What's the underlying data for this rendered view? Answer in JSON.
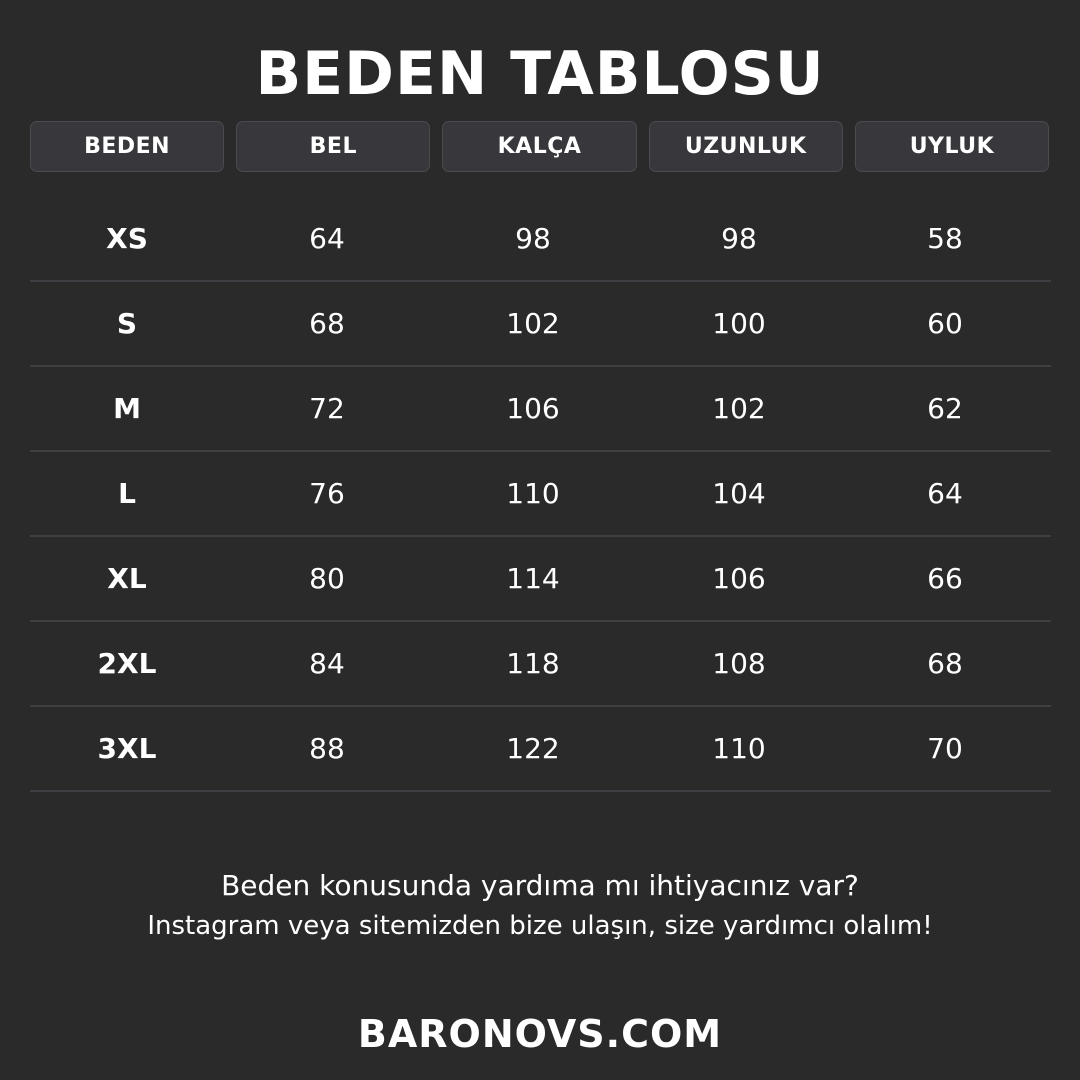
{
  "title": "BEDEN TABLOSU",
  "headers": [
    "BEDEN",
    "BEL",
    "KALÇA",
    "UZUNLUK",
    "UYLUK"
  ],
  "rows": [
    [
      "XS",
      "64",
      "98",
      "98",
      "58"
    ],
    [
      "S",
      "68",
      "102",
      "100",
      "60"
    ],
    [
      "M",
      "72",
      "106",
      "102",
      "62"
    ],
    [
      "L",
      "76",
      "110",
      "104",
      "64"
    ],
    [
      "XL",
      "80",
      "114",
      "106",
      "66"
    ],
    [
      "2XL",
      "84",
      "118",
      "108",
      "68"
    ],
    [
      "3XL",
      "88",
      "122",
      "110",
      "70"
    ]
  ],
  "help": {
    "line1": "Beden konusunda yardıma mı ihtiyacınız var?",
    "line2": "Instagram veya sitemizden bize ulaşın, size yardımcı olalım!"
  },
  "website": "BARONOVS.COM",
  "colors": {
    "background": "#2a2a2a",
    "header_box": "#37373c",
    "divider": "#3f3f43",
    "text": "#ffffff"
  }
}
